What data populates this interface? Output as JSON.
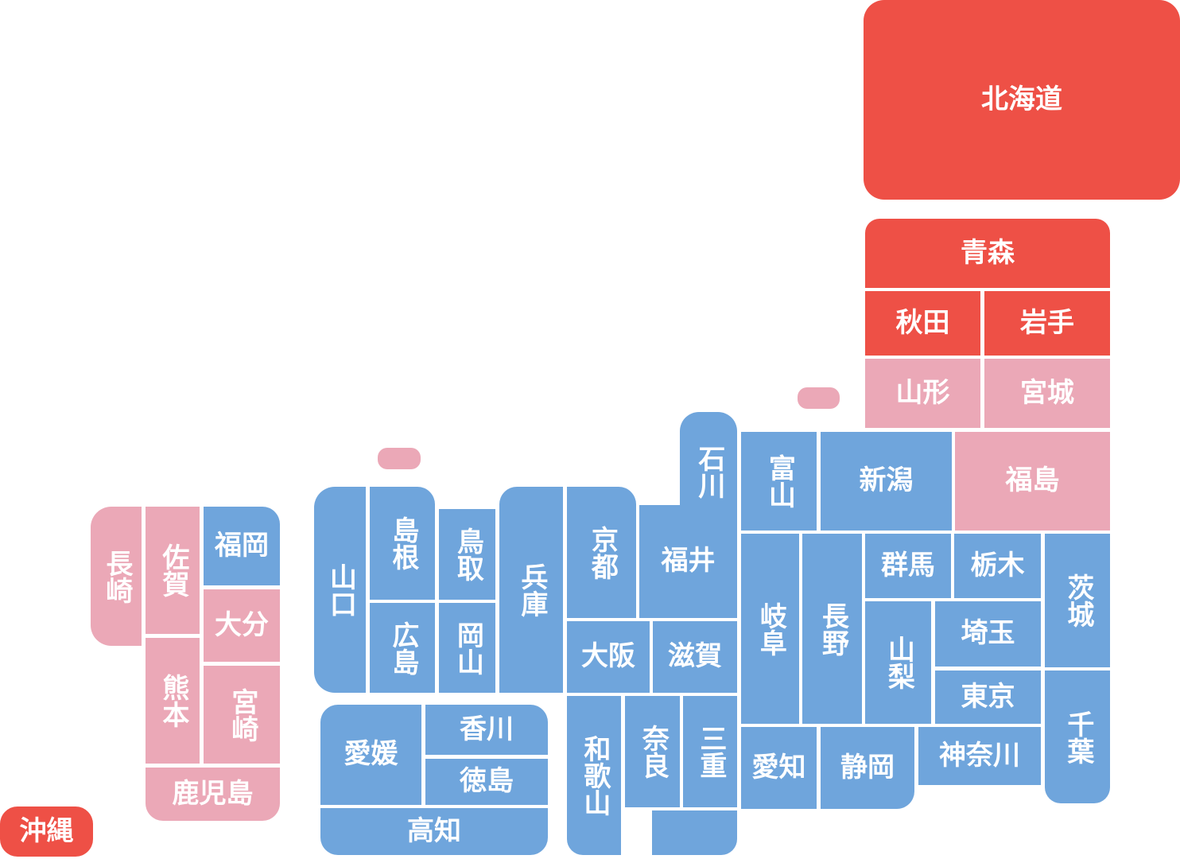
{
  "legend_colors": {
    "red": "#ee5046",
    "pink": "#eba8b7",
    "blue": "#6fa5dc"
  },
  "prefectures": {
    "hokkaido": "北海道",
    "aomori": "青森",
    "akita": "秋田",
    "iwate": "岩手",
    "yamagata": "山形",
    "miyagi": "宮城",
    "fukushima": "福島",
    "niigata": "新潟",
    "toyama": "富山",
    "ishikawa": "石川",
    "fukui": "福井",
    "nagano": "長野",
    "gifu": "岐阜",
    "gunma": "群馬",
    "tochigi": "栃木",
    "ibaraki": "茨城",
    "yamanashi": "山梨",
    "saitama": "埼玉",
    "tokyo": "東京",
    "chiba": "千葉",
    "kanagawa": "神奈川",
    "shizuoka": "静岡",
    "aichi": "愛知",
    "shiga": "滋賀",
    "kyoto": "京都",
    "osaka": "大阪",
    "hyogo": "兵庫",
    "nara": "奈良",
    "wakayama": "和歌山",
    "mie": "三重",
    "tottori": "鳥取",
    "shimane": "島根",
    "okayama": "岡山",
    "hiroshima": "広島",
    "yamaguchi": "山口",
    "kagawa": "香川",
    "tokushima": "徳島",
    "ehime": "愛媛",
    "kochi": "高知",
    "fukuoka": "福岡",
    "saga": "佐賀",
    "nagasaki": "長崎",
    "oita": "大分",
    "kumamoto": "熊本",
    "miyazaki": "宮崎",
    "kagoshima": "鹿児島",
    "okinawa": "沖縄"
  }
}
